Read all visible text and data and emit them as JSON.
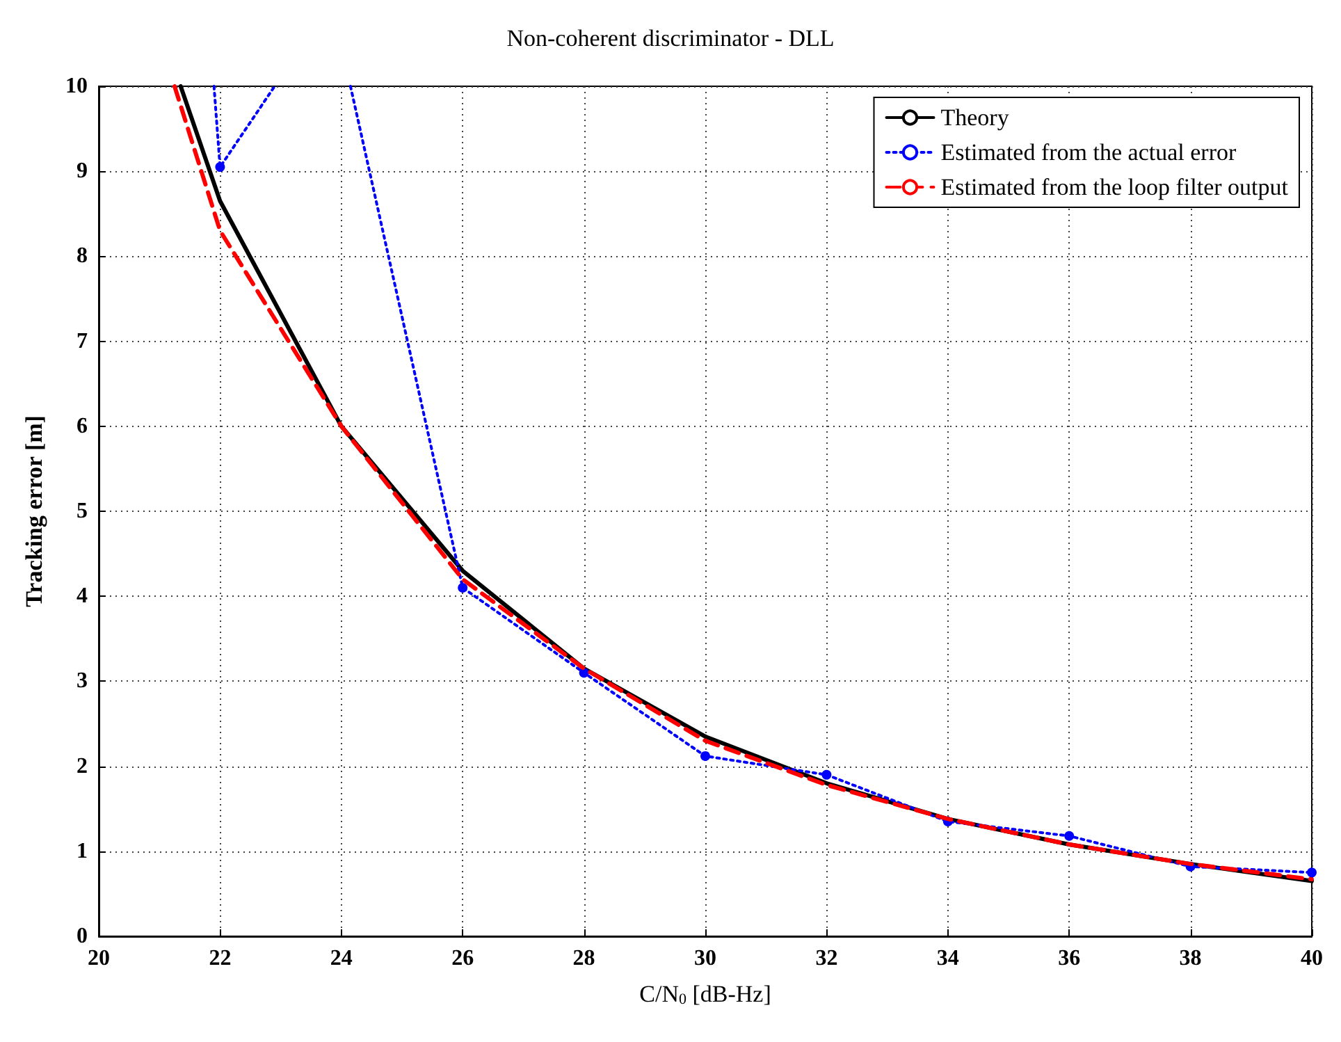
{
  "chart_data": {
    "type": "line",
    "title": "Non-coherent discriminator - DLL",
    "xlabel": "C/N$_{0}$ [dB-Hz]",
    "ylabel": "Tracking error [m]",
    "xlim": [
      20,
      40
    ],
    "xticks": [
      20,
      22,
      24,
      26,
      28,
      30,
      32,
      34,
      36,
      38,
      40
    ],
    "ylim": [
      0,
      10
    ],
    "yticks": [
      0,
      1,
      2,
      3,
      4,
      5,
      6,
      7,
      8,
      9,
      10
    ],
    "grid": true,
    "legend": "top right",
    "series": [
      {
        "name": "Theory",
        "color": "#000000",
        "line_style": "solid",
        "marker": "none",
        "x": [
          21.35,
          22,
          24,
          26,
          28,
          30,
          32,
          34,
          36,
          38,
          40
        ],
        "values": [
          10,
          8.65,
          6.0,
          4.3,
          3.15,
          2.35,
          1.8,
          1.38,
          1.08,
          0.85,
          0.65
        ]
      },
      {
        "name": "Estimated from the actual error",
        "color": "#0000ff",
        "line_style": "dotted",
        "marker": "circle",
        "x": [
          21.9,
          22,
          22.9,
          23.5,
          24.15,
          26,
          28,
          30,
          32,
          34,
          36,
          38,
          40
        ],
        "values": [
          10,
          9.05,
          10,
          null,
          10,
          4.1,
          3.1,
          2.12,
          1.9,
          1.35,
          1.18,
          0.82,
          0.75
        ]
      },
      {
        "name": "Estimated from the loop filter output",
        "color": "#ff0000",
        "line_style": "dashed",
        "marker": "none",
        "x": [
          21.25,
          22,
          24,
          26,
          28,
          30,
          32,
          34,
          36,
          38,
          40
        ],
        "values": [
          10,
          8.3,
          6.0,
          4.2,
          3.15,
          2.3,
          1.78,
          1.38,
          1.08,
          0.85,
          0.67
        ]
      }
    ]
  }
}
